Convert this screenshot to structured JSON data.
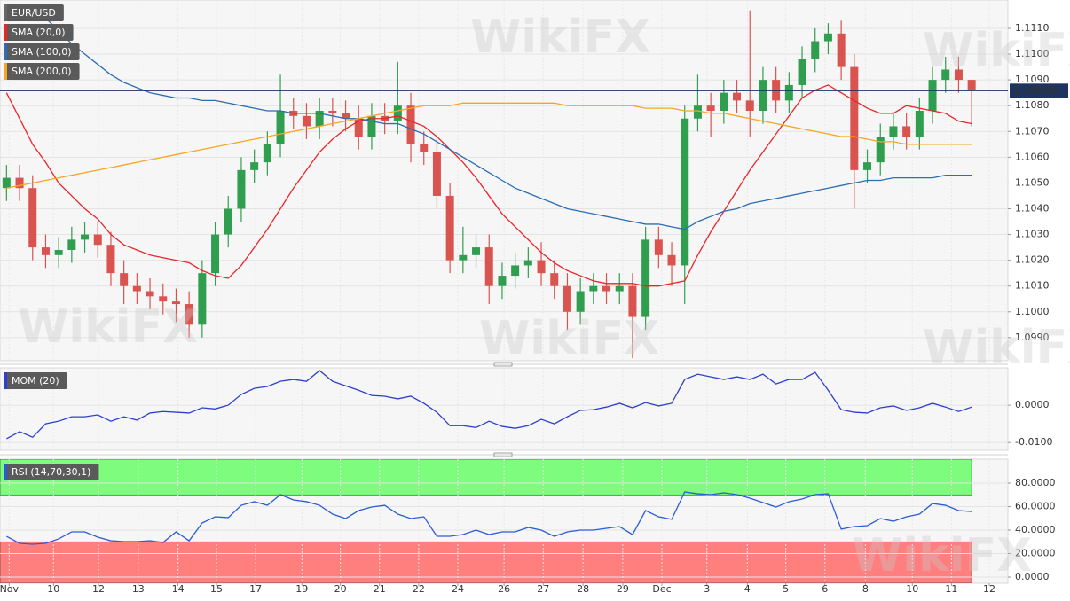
{
  "watermark": "WikiFX",
  "chart_data": [
    {
      "type": "candlestick",
      "name": "EUR/USD",
      "color": "#666666",
      "up_color": "#2f9e4f",
      "down_color": "#d9534f",
      "last_price": 1.10858,
      "last_price_color": "#1d3461",
      "grid": true,
      "xlim": [
        0,
        154.56
      ],
      "ylim": [
        1.0981,
        1.1121
      ],
      "yticks": [
        {
          "value": 1.111,
          "label": "1.1110"
        },
        {
          "value": 1.11,
          "label": "1.1100"
        },
        {
          "value": 1.109,
          "label": "1.1090"
        },
        {
          "value": 1.108,
          "label": "1.1080"
        },
        {
          "value": 1.107,
          "label": "1.1070"
        },
        {
          "value": 1.106,
          "label": "1.1060"
        },
        {
          "value": 1.105,
          "label": "1.1050"
        },
        {
          "value": 1.104,
          "label": "1.1040"
        },
        {
          "value": 1.103,
          "label": "1.1030"
        },
        {
          "value": 1.102,
          "label": "1.1020"
        },
        {
          "value": 1.101,
          "label": "1.1010"
        },
        {
          "value": 1.1,
          "label": "1.1000"
        },
        {
          "value": 1.099,
          "label": "1.0990"
        }
      ],
      "x": [
        1,
        3,
        5,
        7,
        9,
        11,
        13,
        15,
        17,
        19,
        21,
        23,
        25,
        27,
        29,
        31,
        33,
        35,
        37,
        39,
        41,
        43,
        45,
        47,
        49,
        51,
        53,
        55,
        57,
        59,
        61,
        63,
        65,
        67,
        69,
        71,
        73,
        75,
        77,
        79,
        81,
        83,
        85,
        87,
        89,
        91,
        93,
        95,
        97,
        99,
        101,
        103,
        105,
        107,
        109,
        111,
        113,
        115,
        117,
        119,
        121,
        123,
        125,
        127,
        129,
        131,
        133,
        135,
        137,
        139,
        141,
        143,
        145,
        147,
        149
      ],
      "open": [
        1.1048,
        1.1052,
        1.1048,
        1.1025,
        1.1022,
        1.1024,
        1.1028,
        1.103,
        1.1026,
        1.1015,
        1.101,
        1.1008,
        1.1006,
        1.1004,
        1.1003,
        1.0995,
        1.1015,
        1.103,
        1.104,
        1.1055,
        1.1058,
        1.1065,
        1.1078,
        1.1076,
        1.1072,
        1.1078,
        1.1077,
        1.1075,
        1.1068,
        1.1076,
        1.1074,
        1.108,
        1.1065,
        1.1062,
        1.1045,
        1.102,
        1.1022,
        1.1025,
        1.101,
        1.1014,
        1.1018,
        1.102,
        1.1015,
        1.101,
        1.1,
        1.1008,
        1.101,
        1.1008,
        1.101,
        1.0998,
        1.1028,
        1.1022,
        1.1018,
        1.1075,
        1.108,
        1.1078,
        1.1085,
        1.1082,
        1.1078,
        1.109,
        1.1082,
        1.1088,
        1.1098,
        1.1105,
        1.1108,
        1.1095,
        1.1055,
        1.1058,
        1.1068,
        1.1072,
        1.1068,
        1.1078,
        1.109,
        1.1094,
        1.109
      ],
      "high": [
        1.1057,
        1.1057,
        1.1053,
        1.103,
        1.1029,
        1.1033,
        1.1035,
        1.1035,
        1.1031,
        1.102,
        1.1015,
        1.1013,
        1.1011,
        1.1009,
        1.1008,
        1.102,
        1.1035,
        1.1045,
        1.106,
        1.1063,
        1.107,
        1.1092,
        1.1083,
        1.1081,
        1.1083,
        1.1083,
        1.1082,
        1.108,
        1.1081,
        1.1081,
        1.1097,
        1.1085,
        1.107,
        1.1067,
        1.105,
        1.1033,
        1.103,
        1.103,
        1.1019,
        1.1023,
        1.1025,
        1.1027,
        1.102,
        1.1015,
        1.1013,
        1.1015,
        1.1015,
        1.1015,
        1.1015,
        1.1033,
        1.1033,
        1.1027,
        1.108,
        1.1092,
        1.1085,
        1.109,
        1.109,
        1.1117,
        1.1095,
        1.1095,
        1.1093,
        1.1103,
        1.111,
        1.1112,
        1.1113,
        1.11,
        1.1063,
        1.1073,
        1.1077,
        1.1077,
        1.1083,
        1.1095,
        1.1099,
        1.1099,
        1.109
      ],
      "low": [
        1.1043,
        1.1043,
        1.102,
        1.1017,
        1.1017,
        1.1019,
        1.1023,
        1.1021,
        1.101,
        1.1003,
        1.1003,
        1.1001,
        1.0999,
        1.0996,
        1.099,
        1.099,
        1.101,
        1.1025,
        1.1035,
        1.105,
        1.1053,
        1.106,
        1.1071,
        1.1067,
        1.1067,
        1.1072,
        1.107,
        1.1063,
        1.1063,
        1.1069,
        1.1069,
        1.1058,
        1.1057,
        1.104,
        1.1015,
        1.1015,
        1.1017,
        1.1003,
        1.1005,
        1.1009,
        1.1013,
        1.101,
        1.1005,
        1.0993,
        1.0995,
        1.1003,
        1.1003,
        1.1003,
        1.0982,
        1.0993,
        1.1017,
        1.101,
        1.1003,
        1.107,
        1.1068,
        1.1073,
        1.1077,
        1.1068,
        1.1073,
        1.1077,
        1.1077,
        1.1083,
        1.1093,
        1.11,
        1.109,
        1.104,
        1.105,
        1.1053,
        1.1063,
        1.1063,
        1.1063,
        1.1073,
        1.1085,
        1.1085,
        1.1072
      ],
      "close": [
        1.1052,
        1.1048,
        1.1025,
        1.1022,
        1.1024,
        1.1028,
        1.103,
        1.1026,
        1.1015,
        1.101,
        1.1008,
        1.1006,
        1.1004,
        1.1003,
        1.0995,
        1.1015,
        1.103,
        1.104,
        1.1055,
        1.1058,
        1.1065,
        1.1078,
        1.1076,
        1.1072,
        1.1078,
        1.1077,
        1.1075,
        1.1068,
        1.1076,
        1.1074,
        1.108,
        1.1065,
        1.1062,
        1.1045,
        1.102,
        1.1022,
        1.1025,
        1.101,
        1.1014,
        1.1018,
        1.102,
        1.1015,
        1.101,
        1.1,
        1.1008,
        1.101,
        1.1008,
        1.101,
        1.0998,
        1.1028,
        1.1022,
        1.1018,
        1.1075,
        1.108,
        1.1078,
        1.1085,
        1.1082,
        1.1078,
        1.109,
        1.1082,
        1.1088,
        1.1098,
        1.1105,
        1.1108,
        1.1095,
        1.1055,
        1.1058,
        1.1068,
        1.1072,
        1.1068,
        1.1078,
        1.109,
        1.1094,
        1.109,
        1.1086
      ],
      "series": [
        {
          "name": "SMA (20,0)",
          "color": "#e8262a",
          "values": [
            1.1085,
            1.1075,
            1.1065,
            1.1058,
            1.105,
            1.1045,
            1.104,
            1.1036,
            1.103,
            1.1026,
            1.1024,
            1.1022,
            1.1021,
            1.102,
            1.1019,
            1.1016,
            1.1014,
            1.1013,
            1.1018,
            1.1025,
            1.1032,
            1.104,
            1.1048,
            1.1055,
            1.1062,
            1.1067,
            1.1071,
            1.1074,
            1.1075,
            1.1075,
            1.1076,
            1.1074,
            1.1072,
            1.1068,
            1.1063,
            1.1058,
            1.1052,
            1.1045,
            1.1038,
            1.1033,
            1.1028,
            1.1023,
            1.1019,
            1.1016,
            1.1014,
            1.1012,
            1.1011,
            1.1011,
            1.1011,
            1.101,
            1.101,
            1.1011,
            1.1012,
            1.1022,
            1.1031,
            1.1039,
            1.1047,
            1.1055,
            1.1062,
            1.1069,
            1.1076,
            1.1083,
            1.1086,
            1.1088,
            1.1085,
            1.1082,
            1.1079,
            1.1077,
            1.1077,
            1.108,
            1.1079,
            1.1078,
            1.1077,
            1.1074,
            1.1073
          ]
        },
        {
          "name": "SMA (100,0)",
          "color": "#2c6db3",
          "values": [
            null,
            null,
            1.1119,
            1.1114,
            1.1109,
            1.1104,
            1.11,
            1.1096,
            1.1092,
            1.1089,
            1.1087,
            1.1085,
            1.1084,
            1.1083,
            1.1083,
            1.1082,
            1.1082,
            1.1081,
            1.108,
            1.1079,
            1.1078,
            1.1078,
            1.1077,
            1.1077,
            1.1077,
            1.1076,
            1.1075,
            1.1075,
            1.1074,
            1.1073,
            1.1073,
            1.1071,
            1.1069,
            1.1066,
            1.1063,
            1.106,
            1.1057,
            1.1054,
            1.1051,
            1.1048,
            1.1046,
            1.1044,
            1.1042,
            1.104,
            1.1039,
            1.1038,
            1.1037,
            1.1036,
            1.1035,
            1.1034,
            1.1034,
            1.1033,
            1.1032,
            1.1035,
            1.1037,
            1.1039,
            1.104,
            1.1042,
            1.1043,
            1.1044,
            1.1045,
            1.1046,
            1.1047,
            1.1048,
            1.1049,
            1.105,
            1.1051,
            1.1051,
            1.1052,
            1.1052,
            1.1052,
            1.1052,
            1.1053,
            1.1053,
            1.1053
          ]
        },
        {
          "name": "SMA (200,0)",
          "color": "#f5a623",
          "values": [
            1.1048,
            1.1049,
            1.105,
            1.1051,
            1.1052,
            1.1053,
            1.1054,
            1.1055,
            1.1056,
            1.1057,
            1.1058,
            1.1059,
            1.106,
            1.1061,
            1.1062,
            1.1063,
            1.1064,
            1.1065,
            1.1066,
            1.1067,
            1.1068,
            1.1069,
            1.107,
            1.1071,
            1.1072,
            1.1073,
            1.1074,
            1.1075,
            1.1076,
            1.1077,
            1.1078,
            1.1079,
            1.108,
            1.108,
            1.108,
            1.1081,
            1.1081,
            1.1081,
            1.1081,
            1.1081,
            1.1081,
            1.1081,
            1.1081,
            1.108,
            1.108,
            1.108,
            1.108,
            1.108,
            1.108,
            1.1079,
            1.1079,
            1.1079,
            1.1078,
            1.1078,
            1.1077,
            1.1077,
            1.1076,
            1.1075,
            1.1074,
            1.1073,
            1.1072,
            1.1071,
            1.107,
            1.1069,
            1.1068,
            1.1068,
            1.1067,
            1.1066,
            1.1066,
            1.1065,
            1.1065,
            1.1065,
            1.1065,
            1.1065,
            1.1065
          ]
        }
      ]
    },
    {
      "type": "line",
      "grid": true,
      "xlim": [
        0,
        154.56
      ],
      "ylim": [
        -0.0121,
        0.01
      ],
      "yticks": [
        {
          "value": 0,
          "label": "0.0000"
        },
        {
          "value": -0.01,
          "label": "-0.0100"
        }
      ],
      "x": [
        1,
        3,
        5,
        7,
        9,
        11,
        13,
        15,
        17,
        19,
        21,
        23,
        25,
        27,
        29,
        31,
        33,
        35,
        37,
        39,
        41,
        43,
        45,
        47,
        49,
        51,
        53,
        55,
        57,
        59,
        61,
        63,
        65,
        67,
        69,
        71,
        73,
        75,
        77,
        79,
        81,
        83,
        85,
        87,
        89,
        91,
        93,
        95,
        97,
        99,
        101,
        103,
        105,
        107,
        109,
        111,
        113,
        115,
        117,
        119,
        121,
        123,
        125,
        127,
        129,
        131,
        133,
        135,
        137,
        139,
        141,
        143,
        145,
        147,
        149
      ],
      "series": [
        {
          "name": "MOM (20)",
          "color": "#2d3fd1",
          "values": [
            -0.009,
            -0.0071,
            -0.0086,
            -0.005,
            -0.0043,
            -0.0031,
            -0.0031,
            -0.0026,
            -0.0043,
            -0.0031,
            -0.004,
            -0.0021,
            -0.0017,
            -0.0019,
            -0.0021,
            -0.0007,
            -0.001,
            0,
            0.0029,
            0.0045,
            0.005,
            0.0064,
            0.0069,
            0.0064,
            0.0093,
            0.0064,
            0.0052,
            0.004,
            0.0026,
            0.0024,
            0.0017,
            0.0024,
            0.0005,
            -0.0019,
            -0.0055,
            -0.0055,
            -0.006,
            -0.0043,
            -0.0057,
            -0.0062,
            -0.0055,
            -0.0038,
            -0.005,
            -0.0031,
            -0.0014,
            -0.0012,
            -0.0005,
            0.0005,
            -0.0007,
            0.0007,
            -0.0002,
            0.0005,
            0.0069,
            0.0083,
            0.0076,
            0.0069,
            0.0076,
            0.0069,
            0.0083,
            0.0057,
            0.0069,
            0.0069,
            0.0088,
            0.004,
            -0.0012,
            -0.0019,
            -0.0021,
            -0.0007,
            -0.0002,
            -0.0014,
            -0.0007,
            0.0005,
            -0.0005,
            -0.0017,
            -0.0005
          ]
        }
      ]
    },
    {
      "type": "line",
      "grid": true,
      "overbought": 70,
      "oversold": 30,
      "overbought_color": "#7dfc7d",
      "oversold_color": "#ff7f7f",
      "xlim": [
        0,
        154.56
      ],
      "ylim": [
        -5.3,
        100.4
      ],
      "yticks": [
        {
          "value": 80,
          "label": "80.0000"
        },
        {
          "value": 60,
          "label": "60.0000"
        },
        {
          "value": 40,
          "label": "40.0000"
        },
        {
          "value": 20,
          "label": "20.0000"
        },
        {
          "value": 0,
          "label": "0.0000"
        }
      ],
      "xticks": [
        {
          "value": 1.4,
          "label": "Nov"
        },
        {
          "value": 8.2,
          "label": "10"
        },
        {
          "value": 15.1,
          "label": "12"
        },
        {
          "value": 21.2,
          "label": "13"
        },
        {
          "value": 27.3,
          "label": "14"
        },
        {
          "value": 33.2,
          "label": "15"
        },
        {
          "value": 39.2,
          "label": "17"
        },
        {
          "value": 46.3,
          "label": "19"
        },
        {
          "value": 52.2,
          "label": "20"
        },
        {
          "value": 58.2,
          "label": "21"
        },
        {
          "value": 64.2,
          "label": "22"
        },
        {
          "value": 70.2,
          "label": "24"
        },
        {
          "value": 77.3,
          "label": "26"
        },
        {
          "value": 83.3,
          "label": "27"
        },
        {
          "value": 89.4,
          "label": "28"
        },
        {
          "value": 95.5,
          "label": "29"
        },
        {
          "value": 101.5,
          "label": "Dec"
        },
        {
          "value": 108.4,
          "label": "3"
        },
        {
          "value": 114.6,
          "label": "4"
        },
        {
          "value": 120.5,
          "label": "5"
        },
        {
          "value": 126.5,
          "label": "6"
        },
        {
          "value": 132.7,
          "label": "8"
        },
        {
          "value": 139.9,
          "label": "10"
        },
        {
          "value": 145.9,
          "label": "11"
        },
        {
          "value": 151.7,
          "label": "12"
        }
      ],
      "x": [
        1,
        3,
        5,
        7,
        9,
        11,
        13,
        15,
        17,
        19,
        21,
        23,
        25,
        27,
        29,
        31,
        33,
        35,
        37,
        39,
        41,
        43,
        45,
        47,
        49,
        51,
        53,
        55,
        57,
        59,
        61,
        63,
        65,
        67,
        69,
        71,
        73,
        75,
        77,
        79,
        81,
        83,
        85,
        87,
        89,
        91,
        93,
        95,
        97,
        99,
        101,
        103,
        105,
        107,
        109,
        111,
        113,
        115,
        117,
        119,
        121,
        123,
        125,
        127,
        129,
        131,
        133,
        135,
        137,
        139,
        141,
        143,
        145,
        147,
        149
      ],
      "series": [
        {
          "name": "RSI (14,70,30,1)",
          "color": "#2a5cd6",
          "values": [
            34.7,
            28.7,
            27.9,
            28.7,
            32.5,
            38.5,
            38.5,
            34,
            30.9,
            30.2,
            30.2,
            30.9,
            29.4,
            38.5,
            30.9,
            46,
            51.3,
            50.6,
            61.1,
            64.2,
            61.1,
            70.2,
            65.7,
            64.2,
            61.1,
            53.6,
            49.8,
            56.6,
            59.6,
            61.1,
            53.6,
            49.8,
            51.3,
            34.7,
            34.7,
            36.2,
            40,
            36.2,
            38.5,
            38.5,
            42.3,
            40,
            34.7,
            38.5,
            40,
            40,
            41.5,
            43,
            36.2,
            56.6,
            51.3,
            49.1,
            72.5,
            70.9,
            70.2,
            71.7,
            70.2,
            67.2,
            63.4,
            59.6,
            64.2,
            66.4,
            70.2,
            70.9,
            40.8,
            43,
            43.8,
            49.8,
            47.5,
            51.3,
            53.6,
            62.6,
            61.1,
            56.6,
            55.8
          ]
        }
      ]
    }
  ]
}
